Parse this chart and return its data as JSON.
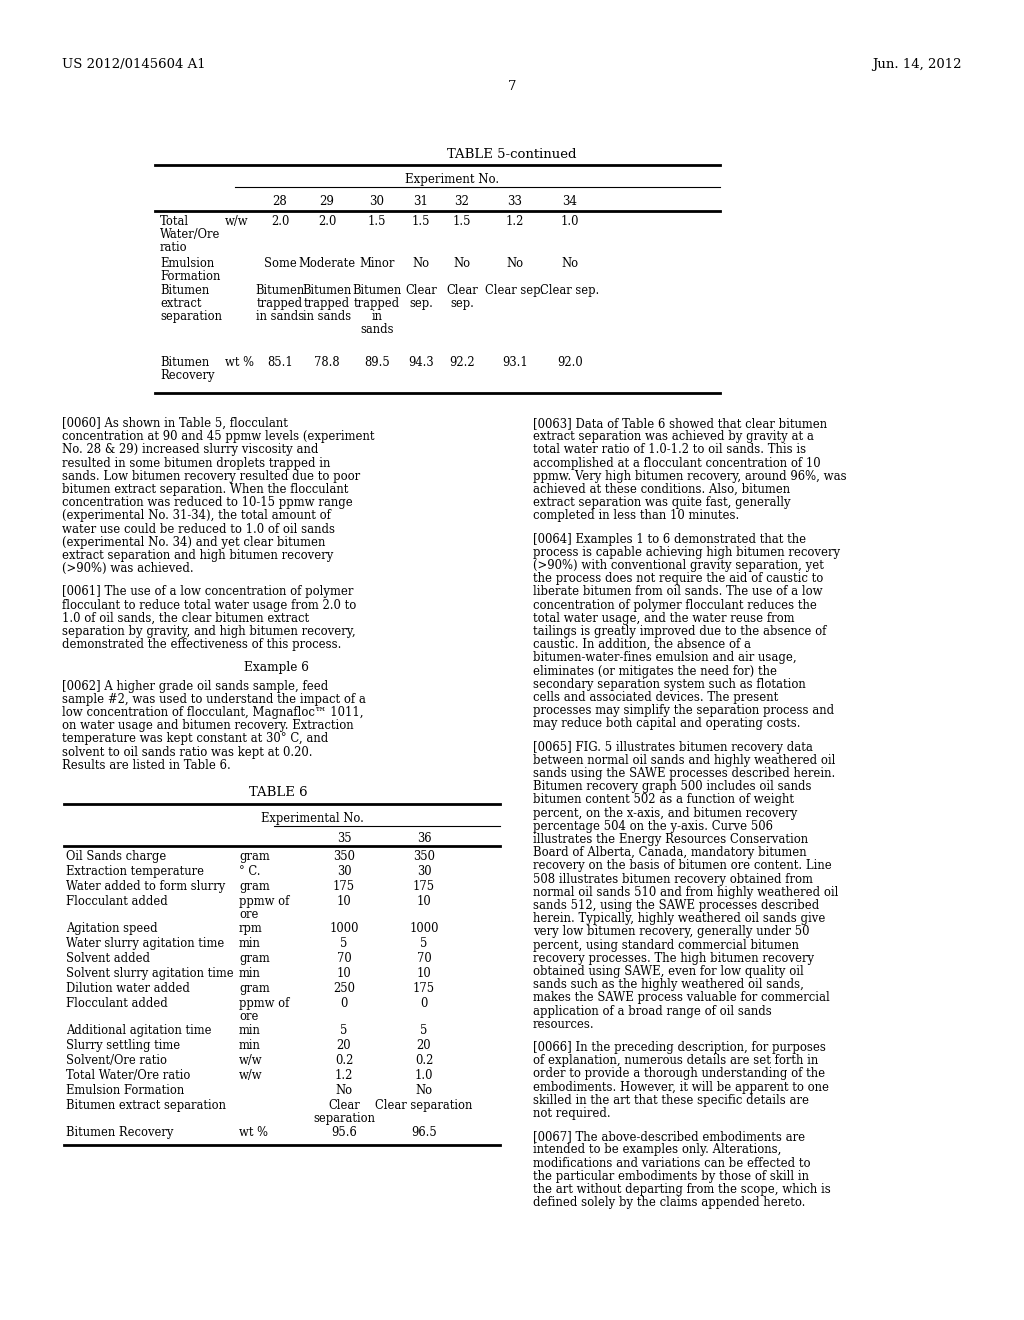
{
  "background_color": "#ffffff",
  "header_left": "US 2012/0145604 A1",
  "header_right": "Jun. 14, 2012",
  "page_number": "7",
  "table5_title": "TABLE 5-continued",
  "table5_exp_label": "Experiment No.",
  "table5_col_headers": [
    "28",
    "29",
    "30",
    "31",
    "32",
    "33",
    "34"
  ],
  "table5_rows": [
    {
      "label": "Total\nWater/Ore\nratio",
      "unit": "w/w",
      "values": [
        "2.0",
        "2.0",
        "1.5",
        "1.5",
        "1.5",
        "1.2",
        "1.0"
      ]
    },
    {
      "label": "Emulsion\nFormation",
      "unit": "",
      "values": [
        "Some",
        "Moderate",
        "Minor",
        "No",
        "No",
        "No",
        "No"
      ]
    },
    {
      "label": "Bitumen\nextract\nseparation",
      "unit": "",
      "values": [
        "Bitumen\ntrapped\nin sands",
        "Bitumen\ntrapped\nin sands",
        "Bitumen\ntrapped\nin\nsands",
        "Clear\nsep.",
        "Clear\nsep.",
        "Clear sep.",
        "Clear sep."
      ]
    },
    {
      "label": "Bitumen\nRecovery",
      "unit": "wt %",
      "values": [
        "85.1",
        "78.8",
        "89.5",
        "94.3",
        "92.2",
        "93.1",
        "92.0"
      ]
    }
  ],
  "para60": "[0060]    As shown in Table 5, flocculant concentration at 90 and 45 ppmw levels (experiment No. 28 & 29) increased slurry viscosity and resulted in some bitumen droplets trapped in sands. Low bitumen recovery resulted due to poor bitumen extract separation. When the flocculant concentration was reduced to 10-15 ppmw range (experimental No. 31-34), the total amount of water use could be reduced to 1.0 of oil sands (experimental No. 34) and yet clear bitumen extract separation and high bitumen recovery (>90%) was achieved.",
  "para61": "[0061]    The use of a low concentration of polymer flocculant to reduce total water usage from 2.0 to 1.0 of oil sands, the clear bitumen extract separation by gravity, and high bitumen recovery, demonstrated the effectiveness of this process.",
  "example6": "Example 6",
  "para62": "[0062]    A higher grade oil sands sample, feed sample #2, was used to understand the impact of a low concentration of flocculant, Magnafloc™ 1011, on water usage and bitumen recovery. Extraction temperature was kept constant at 30° C, and solvent to oil sands ratio was kept at 0.20. Results are listed in Table 6.",
  "table6_title": "TABLE 6",
  "table6_exp_label": "Experimental No.",
  "table6_col_headers": [
    "35",
    "36"
  ],
  "table6_rows": [
    {
      "label": "Oil Sands charge",
      "unit": "gram",
      "values": [
        "350",
        "350"
      ]
    },
    {
      "label": "Extraction temperature",
      "unit": "° C.",
      "values": [
        "30",
        "30"
      ]
    },
    {
      "label": "Water added to form slurry",
      "unit": "gram",
      "values": [
        "175",
        "175"
      ]
    },
    {
      "label": "Flocculant added",
      "unit": "ppmw of\nore",
      "values": [
        "10",
        "10"
      ]
    },
    {
      "label": "Agitation speed",
      "unit": "rpm",
      "values": [
        "1000",
        "1000"
      ]
    },
    {
      "label": "Water slurry agitation time",
      "unit": "min",
      "values": [
        "5",
        "5"
      ]
    },
    {
      "label": "Solvent added",
      "unit": "gram",
      "values": [
        "70",
        "70"
      ]
    },
    {
      "label": "Solvent slurry agitation time",
      "unit": "min",
      "values": [
        "10",
        "10"
      ]
    },
    {
      "label": "Dilution water added",
      "unit": "gram",
      "values": [
        "250",
        "175"
      ]
    },
    {
      "label": "Flocculant added",
      "unit": "ppmw of\nore",
      "values": [
        "0",
        "0"
      ]
    },
    {
      "label": "Additional agitation time",
      "unit": "min",
      "values": [
        "5",
        "5"
      ]
    },
    {
      "label": "Slurry settling time",
      "unit": "min",
      "values": [
        "20",
        "20"
      ]
    },
    {
      "label": "Solvent/Ore ratio",
      "unit": "w/w",
      "values": [
        "0.2",
        "0.2"
      ]
    },
    {
      "label": "Total Water/Ore ratio",
      "unit": "w/w",
      "values": [
        "1.2",
        "1.0"
      ]
    },
    {
      "label": "Emulsion Formation",
      "unit": "",
      "values": [
        "No",
        "No"
      ]
    },
    {
      "label": "Bitumen extract separation",
      "unit": "",
      "values": [
        "Clear\nseparation",
        "Clear separation"
      ]
    },
    {
      "label": "Bitumen Recovery",
      "unit": "wt %",
      "values": [
        "95.6",
        "96.5"
      ]
    }
  ],
  "para63": "[0063]    Data of Table 6 showed that clear bitumen extract separation was achieved by gravity at a total water ratio of 1.0-1.2 to oil sands. This is accomplished at a flocculant concentration of 10 ppmw. Very high bitumen recovery, around 96%, was achieved at these conditions. Also, bitumen extract separation was quite fast, generally completed in less than 10 minutes.",
  "para64": "[0064]    Examples 1 to 6 demonstrated that the process is capable achieving high bitumen recovery (>90%) with conventional gravity separation, yet the process does not require the aid of caustic to liberate bitumen from oil sands. The use of a low concentration of polymer flocculant reduces the total water usage, and the water reuse from tailings is greatly improved due to the absence of caustic. In addition, the absence of a bitumen-water-fines emulsion and air usage, eliminates (or mitigates the need for) the secondary separation system such as flotation cells and associated devices. The present processes may simplify the separation process and may reduce both capital and operating costs.",
  "para65": "[0065]    FIG. 5 illustrates bitumen recovery data between normal oil sands and highly weathered oil sands using the SAWE processes described herein. Bitumen recovery graph 500 includes oil sands bitumen content 502 as a function of weight percent, on the x-axis, and bitumen recovery percentage 504 on the y-axis. Curve 506 illustrates the Energy Resources Conservation Board of Alberta, Canada, mandatory bitumen recovery on the basis of bitumen ore content. Line 508 illustrates bitumen recovery obtained from normal oil sands 510 and from highly weathered oil sands 512, using the SAWE processes described herein. Typically, highly weathered oil sands give very low bitumen recovery, generally under 50 percent, using standard commercial bitumen recovery processes. The high bitumen recovery obtained using SAWE, even for low quality oil sands such as the highly weathered oil sands, makes the SAWE process valuable for commercial application of a broad range of oil sands resources.",
  "para66": "[0066]    In the preceding description, for purposes of explanation, numerous details are set forth in order to provide a thorough understanding of the embodiments. However, it will be apparent to one skilled in the art that these specific details are not required.",
  "para67": "[0067]    The above-described embodiments are intended to be examples only. Alterations, modifications and variations can be effected to the particular embodiments by those of skill in the art without departing from the scope, which is defined solely by the claims appended hereto."
}
